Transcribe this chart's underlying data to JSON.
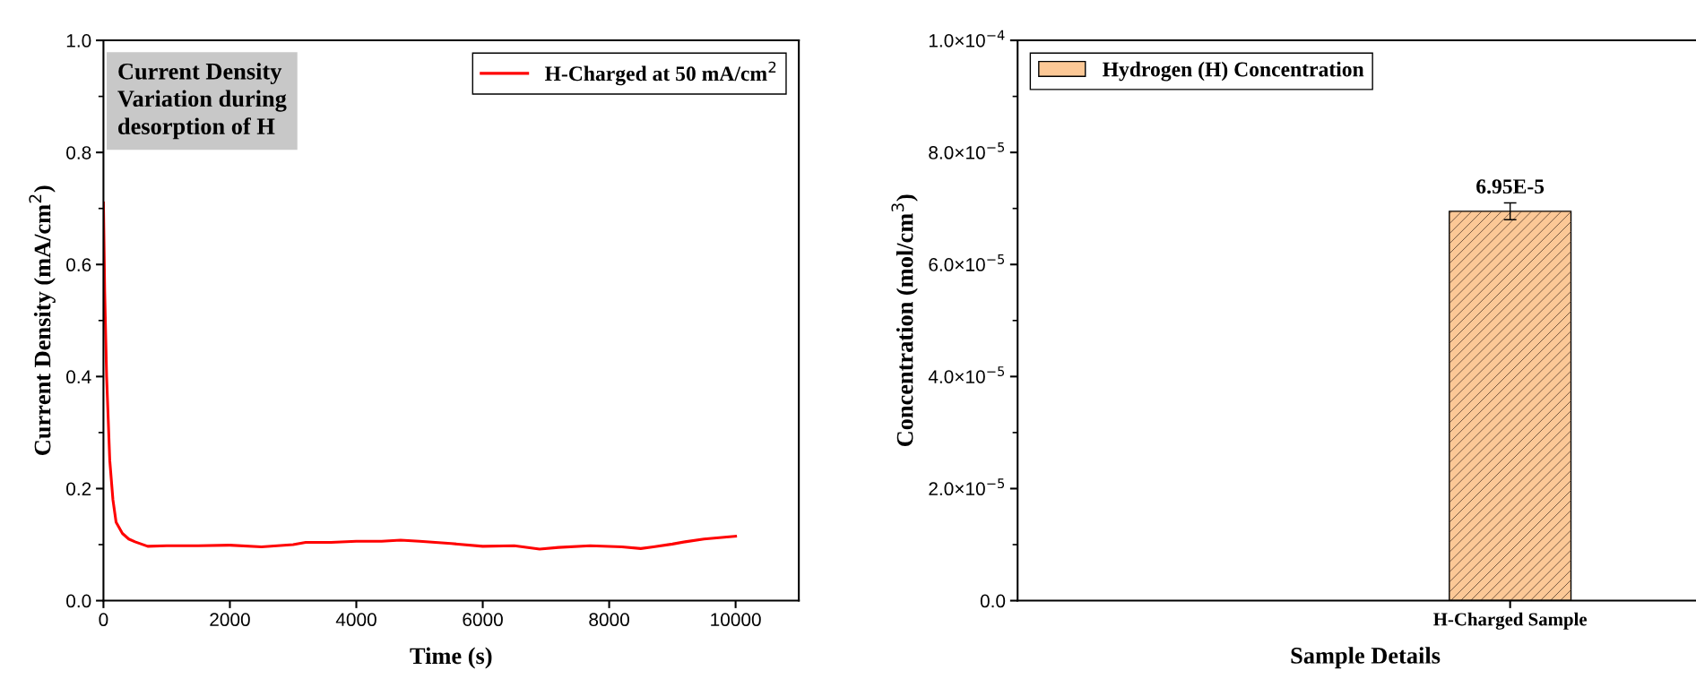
{
  "chart_data": [
    {
      "type": "line",
      "xlabel": "Time (s)",
      "ylabel": "Current Density (mA/cm$^{2}$)",
      "x": [
        0,
        20,
        50,
        100,
        150,
        200,
        300,
        400,
        500,
        700,
        1000,
        1500,
        2000,
        2500,
        3000,
        3200,
        3600,
        4000,
        4400,
        4700,
        5000,
        5500,
        6000,
        6500,
        6900,
        7200,
        7700,
        8200,
        8500,
        8700,
        9000,
        9200,
        9500,
        10000
      ],
      "series": [
        {
          "name": "H-Charged at 50 mA/cm$^{2}$",
          "color": "#ff0000",
          "values": [
            0.71,
            0.55,
            0.4,
            0.25,
            0.18,
            0.14,
            0.12,
            0.11,
            0.105,
            0.097,
            0.098,
            0.098,
            0.099,
            0.096,
            0.1,
            0.104,
            0.104,
            0.106,
            0.106,
            0.108,
            0.106,
            0.102,
            0.097,
            0.098,
            0.092,
            0.095,
            0.098,
            0.096,
            0.093,
            0.096,
            0.101,
            0.105,
            0.11,
            0.115
          ]
        }
      ],
      "xlim": [
        0,
        11000
      ],
      "xticks": [
        0,
        2000,
        4000,
        6000,
        8000,
        10000
      ],
      "ylim": [
        0,
        1.0
      ],
      "yticks": [
        {
          "value": 0,
          "label": "0.0"
        },
        0.2,
        0.4,
        0.6,
        0.8,
        {
          "value": 1.0,
          "label": "1.0"
        }
      ],
      "annotations": [
        "Current Density\nVariation during\ndesorption of H"
      ],
      "legend": "top right",
      "grid": false,
      "marker": "none",
      "line_style": "solid"
    },
    {
      "type": "bar",
      "xlabel": "Sample Details",
      "ylabel": "Concentration (mol/cm$^{3}$)",
      "categories": [
        "H-Charged Sample"
      ],
      "series": [
        {
          "name": "Hydrogen (H) Concentration",
          "color": "#fcc896",
          "values": [
            6.95e-05
          ],
          "errors": [
            1.5e-06
          ],
          "value_labels": [
            "6.95E-5"
          ]
        }
      ],
      "ylim": [
        0,
        0.0001
      ],
      "yticks": [
        {
          "value": 0,
          "label": "0.0"
        },
        {
          "value": 2e-05,
          "label": "2.0×10$^{−5}$"
        },
        {
          "value": 4e-05,
          "label": "4.0×10$^{−5}$"
        },
        {
          "value": 6e-05,
          "label": "6.0×10$^{−5}$"
        },
        {
          "value": 8e-05,
          "label": "8.0×10$^{−5}$"
        },
        {
          "value": 0.0001,
          "label": "1.0×10$^{−4}$"
        }
      ],
      "legend": "top left",
      "grid": false
    }
  ]
}
